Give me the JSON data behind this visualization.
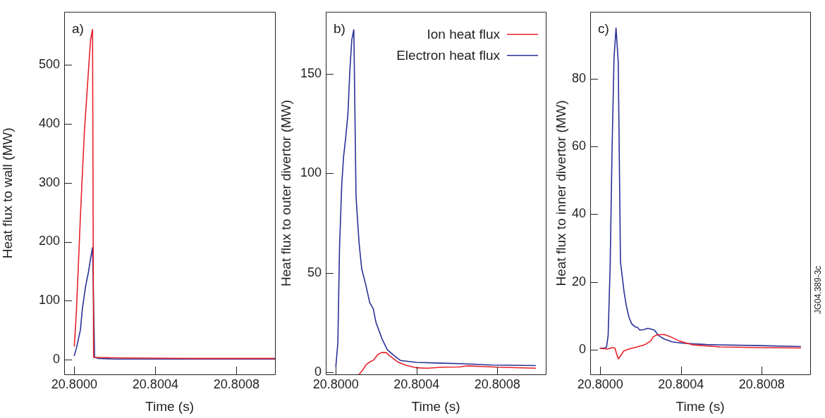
{
  "chart_data": [
    {
      "type": "line",
      "xlabel": "Time (s)",
      "ylabel": "Heat flux to wall (MW)",
      "annotations": [
        "a)"
      ],
      "xlim": [
        20.79995,
        20.80099
      ],
      "ylim": [
        -25,
        590
      ],
      "xticks": [
        {
          "value": 20.8,
          "label": "20.8000"
        },
        {
          "value": 20.8004,
          "label": "20.8004"
        },
        {
          "value": 20.8008,
          "label": "20.8008"
        }
      ],
      "yticks": [
        0,
        100,
        200,
        300,
        400,
        500
      ],
      "grid": false,
      "series": [
        {
          "color": "#e8202a",
          "x": [
            20.8,
            20.80001,
            20.80002,
            20.80003,
            20.80004,
            20.80005,
            20.80007,
            20.80008,
            20.80009,
            20.800095,
            20.8002,
            20.8006,
            20.80099
          ],
          "values": [
            23,
            79,
            160,
            242,
            317,
            388,
            491,
            542,
            560,
            4,
            3,
            2,
            2
          ]
        },
        {
          "color": "#2a3196",
          "x": [
            20.8,
            20.80001,
            20.80003,
            20.80004,
            20.800055,
            20.80007,
            20.80008,
            20.80009,
            20.8001,
            20.80012,
            20.8002,
            20.80099
          ],
          "values": [
            7,
            19,
            50,
            87,
            123,
            149,
            171,
            190,
            4,
            2,
            1,
            1
          ]
        }
      ]
    },
    {
      "type": "line",
      "xlabel": "Time (s)",
      "ylabel": "Heat flux to outer divertor (MW)",
      "annotations": [
        "b)"
      ],
      "legend": "top right",
      "xlim": [
        20.79995,
        20.80104
      ],
      "ylim": [
        -1,
        181
      ],
      "xticks": [
        {
          "value": 20.8,
          "label": "20.8000"
        },
        {
          "value": 20.8004,
          "label": "20.8004"
        },
        {
          "value": 20.8008,
          "label": "20.8008"
        }
      ],
      "yticks": [
        0,
        50,
        100,
        150
      ],
      "grid": false,
      "series": [
        {
          "name": "Ion heat flux",
          "color": "#e8202a",
          "x": [
            20.800115,
            20.800132,
            20.800148,
            20.800168,
            20.800188,
            20.800208,
            20.800228,
            20.800248,
            20.800268,
            20.800307,
            20.800347,
            20.8004,
            20.800453,
            20.800532,
            20.800612,
            20.800652,
            20.800718,
            20.800797,
            20.800989
          ],
          "values": [
            -1,
            1,
            3.6,
            5.2,
            6.3,
            9,
            10,
            10,
            8.2,
            5.2,
            3.6,
            2.3,
            2.1,
            2.6,
            2.7,
            3.3,
            3,
            2.6,
            2.1
          ]
        },
        {
          "name": "Electron heat flux",
          "color": "#2a3196",
          "x": [
            20.8,
            20.80001,
            20.800018,
            20.800029,
            20.800038,
            20.800049,
            20.80006,
            20.800069,
            20.800079,
            20.800089,
            20.8001,
            20.800115,
            20.800128,
            20.800148,
            20.800168,
            20.800185,
            20.800199,
            20.800228,
            20.800254,
            20.800281,
            20.80032,
            20.8004,
            20.800506,
            20.800638,
            20.800771,
            20.800989
          ],
          "values": [
            3,
            15,
            62,
            94,
            108,
            118,
            130,
            151,
            167,
            172,
            88,
            65,
            52,
            44,
            35,
            32,
            25,
            17,
            11.5,
            9,
            6,
            5,
            4.7,
            4.3,
            3.7,
            3.4
          ]
        }
      ]
    },
    {
      "type": "line",
      "xlabel": "Time (s)",
      "ylabel": "Heat flux to inner divertor (MW)",
      "annotations": [
        "c)",
        "JG04.389-3c"
      ],
      "xlim": [
        20.79995,
        20.80104
      ],
      "ylim": [
        -7.3,
        99.8
      ],
      "xticks": [
        {
          "value": 20.8,
          "label": "20.8000"
        },
        {
          "value": 20.8004,
          "label": "20.8004"
        },
        {
          "value": 20.8008,
          "label": "20.8008"
        }
      ],
      "yticks": [
        0,
        20,
        40,
        60,
        80
      ],
      "grid": false,
      "series": [
        {
          "color": "#e8202a",
          "x": [
            20.8,
            20.800036,
            20.800062,
            20.800073,
            20.800081,
            20.800089,
            20.8001,
            20.800116,
            20.800142,
            20.800182,
            20.800222,
            20.800252,
            20.800262,
            20.800282,
            20.800315,
            20.800348,
            20.800394,
            20.800461,
            20.800594,
            20.800793,
            20.800992
          ],
          "values": [
            0.4,
            0.2,
            0.6,
            0.4,
            -1.2,
            -2.7,
            -1.9,
            -0.4,
            0.2,
            0.8,
            1.5,
            2.7,
            3.8,
            4.4,
            4.5,
            3.8,
            2.5,
            1.4,
            0.8,
            0.6,
            0.5
          ]
        },
        {
          "color": "#2a3196",
          "x": [
            20.8,
            20.800023,
            20.800031,
            20.800039,
            20.800049,
            20.800058,
            20.800068,
            20.800078,
            20.800089,
            20.8001,
            20.800109,
            20.800118,
            20.800129,
            20.800142,
            20.800155,
            20.800171,
            20.800186,
            20.800195,
            20.800215,
            20.800235,
            20.800255,
            20.800268,
            20.800288,
            20.800315,
            20.800355,
            20.800408,
            20.800527,
            20.800793,
            20.800992
          ],
          "values": [
            0.4,
            0.5,
            0.8,
            4.2,
            25,
            58,
            86,
            95,
            85,
            26,
            21.5,
            17,
            13,
            9.6,
            7.7,
            6.8,
            6.5,
            5.8,
            5.9,
            6.3,
            6,
            5.8,
            4.2,
            3.2,
            2.3,
            1.9,
            1.5,
            1.2,
            0.9
          ]
        }
      ]
    }
  ]
}
